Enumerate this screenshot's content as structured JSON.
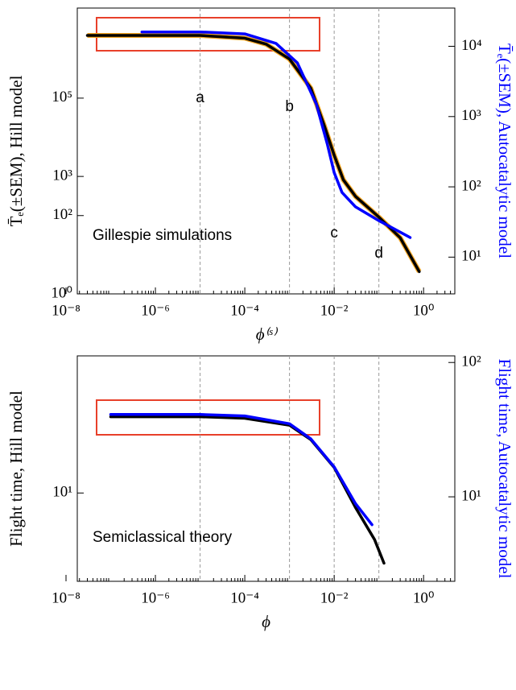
{
  "chart_data": [
    {
      "type": "line",
      "log_x": true,
      "log_y": true,
      "xlabel": "ϕ⁽ˢ⁾",
      "ylabel": "T̄ₑ(±SEM), Hill model",
      "y2label": "T̄ₑ(±SEM), Autocatalytic model",
      "xlim": [
        1e-08,
        5
      ],
      "xticks": [
        {
          "value": 1e-08,
          "label": "10⁻⁸"
        },
        {
          "value": 1e-06,
          "label": "10⁻⁶"
        },
        {
          "value": 0.0001,
          "label": "10⁻⁴"
        },
        {
          "value": 0.01,
          "label": "10⁻²"
        },
        {
          "value": 1,
          "label": "10⁰"
        }
      ],
      "ylim": [
        1,
        20000000
      ],
      "yticks": [
        {
          "value": 1,
          "label": "10⁰"
        },
        {
          "value": 100,
          "label": "10²"
        },
        {
          "value": 1000,
          "label": "10³"
        },
        {
          "value": 100000,
          "label": "10⁵"
        }
      ],
      "y2lim": [
        3,
        35000
      ],
      "y2ticks": [
        {
          "value": 10,
          "label": "10¹"
        },
        {
          "value": 100,
          "label": "10²"
        },
        {
          "value": 1000,
          "label": "10³"
        },
        {
          "value": 10000,
          "label": "10⁴"
        }
      ],
      "y2color": "#0000ff",
      "vlines": [
        1e-05,
        0.001,
        0.01,
        0.1
      ],
      "annotations": [
        {
          "text": "Gillespie simulations"
        },
        {
          "text": "a",
          "x": 1e-05
        },
        {
          "text": "b",
          "x": 0.001
        },
        {
          "text": "c",
          "x": 0.01
        },
        {
          "text": "d",
          "x": 0.1
        }
      ],
      "series": [
        {
          "color": "#000000",
          "halo_color": "#f5a623",
          "x": [
            3e-08,
            1e-06,
            1e-05,
            0.0001,
            0.0003,
            0.001,
            0.003,
            0.006,
            0.01,
            0.016,
            0.03,
            0.1,
            0.3,
            0.8
          ],
          "values": [
            4000000,
            4000000,
            4000000,
            3400000,
            2400000,
            1000000,
            180000,
            20000,
            3500,
            820,
            310,
            91,
            27,
            3.7
          ]
        },
        {
          "color": "#0000ff",
          "axis": "y2",
          "x": [
            5e-07,
            1e-05,
            0.0001,
            0.0005,
            0.0015,
            0.004,
            0.007,
            0.01,
            0.015,
            0.03,
            0.1,
            0.5
          ],
          "values": [
            16000,
            16000,
            15000,
            11000,
            5800,
            1500,
            410,
            160,
            83,
            52,
            33,
            19
          ]
        }
      ]
    },
    {
      "type": "line",
      "log_x": true,
      "log_y": true,
      "xlabel": "ϕ",
      "ylabel": "Flight time, Hill model",
      "y2label": "Flight time, Autocatalytic model",
      "xlim": [
        1e-08,
        5
      ],
      "xticks": [
        {
          "value": 1e-08,
          "label": "10⁻⁸"
        },
        {
          "value": 1e-06,
          "label": "10⁻⁶"
        },
        {
          "value": 0.0001,
          "label": "10⁻⁴"
        },
        {
          "value": 0.01,
          "label": "10⁻²"
        },
        {
          "value": 1,
          "label": "10⁰"
        }
      ],
      "ylim": [
        2.2,
        105
      ],
      "yticks": [
        {
          "value": 10,
          "label": "10¹"
        }
      ],
      "y2lim": [
        2.35,
        112
      ],
      "y2ticks": [
        {
          "value": 10,
          "label": "10¹"
        },
        {
          "value": 100,
          "label": "10²"
        }
      ],
      "y2color": "#0000ff",
      "vlines": [
        1e-05,
        0.001,
        0.01,
        0.1
      ],
      "annotations": [
        {
          "text": "Semiclassical theory"
        }
      ],
      "series": [
        {
          "color": "#000000",
          "x": [
            1e-07,
            1e-05,
            0.0001,
            0.001,
            0.003,
            0.01,
            0.03,
            0.08,
            0.13
          ],
          "values": [
            37,
            37,
            36,
            32,
            25,
            15.5,
            7.8,
            4.5,
            3.0
          ]
        },
        {
          "color": "#0000ff",
          "axis": "y2",
          "x": [
            1e-07,
            1e-05,
            0.0001,
            0.001,
            0.003,
            0.01,
            0.03,
            0.07
          ],
          "values": [
            41,
            41,
            40,
            35,
            27,
            16.7,
            8.9,
            6.2
          ]
        }
      ]
    }
  ]
}
